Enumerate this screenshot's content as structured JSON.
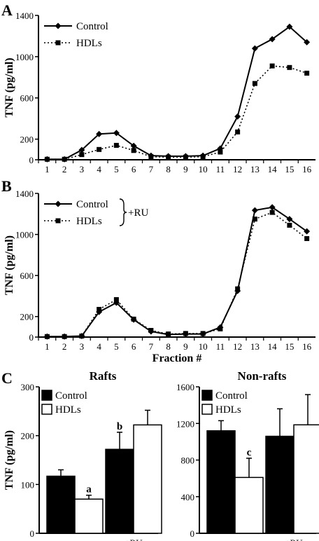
{
  "panels": {
    "A": "A",
    "B": "B",
    "C": "C"
  },
  "chart_data": [
    {
      "panel": "A",
      "type": "line",
      "ylabel": "TNF (pg/ml)",
      "xlabel": "",
      "ylim": [
        0,
        1400
      ],
      "yticks": [
        0,
        200,
        600,
        1000,
        1400
      ],
      "x": [
        1,
        2,
        3,
        4,
        5,
        6,
        7,
        8,
        9,
        10,
        11,
        12,
        13,
        14,
        15,
        16
      ],
      "series": [
        {
          "name": "Control",
          "marker": "diamond",
          "line": "solid",
          "values": [
            5,
            5,
            95,
            250,
            260,
            135,
            40,
            35,
            35,
            40,
            110,
            420,
            1080,
            1170,
            1290,
            1140
          ]
        },
        {
          "name": "HDLs",
          "marker": "square",
          "line": "dotted",
          "values": [
            5,
            5,
            50,
            100,
            140,
            90,
            30,
            25,
            25,
            30,
            75,
            270,
            740,
            910,
            895,
            840
          ]
        }
      ],
      "legend_position": "top-left"
    },
    {
      "panel": "B",
      "type": "line",
      "ylabel": "TNF (pg/ml)",
      "xlabel": "Fraction #",
      "ylim": [
        0,
        1400
      ],
      "yticks": [
        0,
        200,
        600,
        1000,
        1400
      ],
      "x": [
        1,
        2,
        3,
        4,
        5,
        6,
        7,
        8,
        9,
        10,
        11,
        12,
        13,
        14,
        15,
        16
      ],
      "series": [
        {
          "name": "Control",
          "marker": "diamond",
          "line": "solid",
          "values": [
            5,
            5,
            10,
            245,
            335,
            170,
            55,
            25,
            30,
            30,
            95,
            450,
            1235,
            1265,
            1150,
            1030
          ]
        },
        {
          "name": "HDLs",
          "marker": "square",
          "line": "dotted",
          "values": [
            5,
            5,
            10,
            270,
            365,
            175,
            65,
            30,
            35,
            35,
            80,
            470,
            1150,
            1215,
            1090,
            960
          ]
        }
      ],
      "legend_group_label": "+RU",
      "legend_position": "top-left"
    },
    {
      "panel": "C-left",
      "type": "bar",
      "title": "Rafts",
      "ylabel": "TNF (pg/ml)",
      "ylim": [
        0,
        300
      ],
      "yticks": [
        0,
        100,
        200,
        300
      ],
      "group_label": "+RU",
      "series": [
        {
          "name": "Control",
          "color": "#000000",
          "values": [
            117,
            172
          ],
          "errors": [
            13,
            35
          ]
        },
        {
          "name": "HDLs",
          "color": "#ffffff",
          "values": [
            70,
            222
          ],
          "errors": [
            8,
            30
          ]
        }
      ],
      "annotations": [
        "a",
        "b"
      ]
    },
    {
      "panel": "C-right",
      "type": "bar",
      "title": "Non-rafts",
      "ylim": [
        0,
        1600
      ],
      "yticks": [
        0,
        400,
        800,
        1200,
        1600
      ],
      "group_label": "+RU",
      "series": [
        {
          "name": "Control",
          "color": "#000000",
          "values": [
            1120,
            1060
          ],
          "errors": [
            110,
            300
          ]
        },
        {
          "name": "HDLs",
          "color": "#ffffff",
          "values": [
            610,
            1185
          ],
          "errors": [
            210,
            330
          ]
        }
      ],
      "annotations": [
        "c"
      ]
    }
  ]
}
